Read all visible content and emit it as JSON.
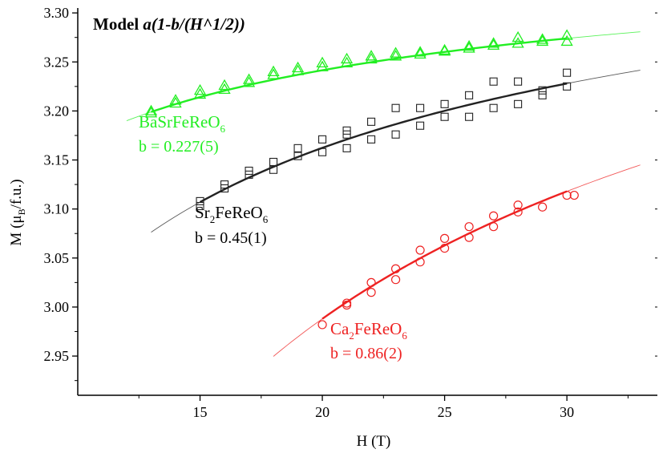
{
  "chart_data": {
    "type": "scatter",
    "title": "Model a(1-b/(H^1/2))",
    "title_prefix": "Model ",
    "title_formula": "a(1-b/(H^1/2))",
    "xlabel": "H (T)",
    "ylabel_main": "M (μ",
    "ylabel_sub": "B",
    "ylabel_tail": "/f.u.)",
    "xlim": [
      10,
      33.7
    ],
    "ylim": [
      2.91,
      3.305
    ],
    "xticks": [
      15,
      20,
      25,
      30
    ],
    "yticks": [
      2.95,
      3.0,
      3.05,
      3.1,
      3.15,
      3.2,
      3.25,
      3.3
    ],
    "grid": false,
    "series": [
      {
        "name": "BaSrFeReO6",
        "label_main": "BaSrFeReO",
        "label_sub": "6",
        "b_label": "b = 0.227(5)",
        "color": "#22ee22",
        "marker": "triangle",
        "points": [
          [
            13,
            3.198
          ],
          [
            13,
            3.2
          ],
          [
            14,
            3.208
          ],
          [
            14,
            3.211
          ],
          [
            15,
            3.217
          ],
          [
            15,
            3.221
          ],
          [
            16,
            3.222
          ],
          [
            16,
            3.226
          ],
          [
            17,
            3.229
          ],
          [
            17,
            3.232
          ],
          [
            18,
            3.237
          ],
          [
            18,
            3.24
          ],
          [
            19,
            3.241
          ],
          [
            19,
            3.244
          ],
          [
            20,
            3.245
          ],
          [
            20,
            3.249
          ],
          [
            21,
            3.249
          ],
          [
            21,
            3.253
          ],
          [
            22,
            3.253
          ],
          [
            22,
            3.256
          ],
          [
            23,
            3.256
          ],
          [
            23,
            3.259
          ],
          [
            24,
            3.258
          ],
          [
            24,
            3.26
          ],
          [
            25,
            3.261
          ],
          [
            25,
            3.262
          ],
          [
            26,
            3.264
          ],
          [
            26,
            3.266
          ],
          [
            27,
            3.267
          ],
          [
            27,
            3.269
          ],
          [
            28,
            3.269
          ],
          [
            28,
            3.275
          ],
          [
            29,
            3.271
          ],
          [
            29,
            3.273
          ],
          [
            30,
            3.271
          ],
          [
            30,
            3.277
          ]
        ],
        "fit_thin": [
          12,
          33
        ],
        "fit_thick": [
          13,
          30
        ],
        "fit_anchor": [
          [
            13,
            3.199
          ],
          [
            30,
            3.274
          ]
        ]
      },
      {
        "name": "Sr2FeReO6",
        "label_main": "Sr",
        "label_sub": "2",
        "label_tail": "FeReO",
        "label_sub2": "6",
        "b_label": "b = 0.45(1)",
        "color": "#222222",
        "marker": "square",
        "points": [
          [
            15,
            3.103
          ],
          [
            15,
            3.108
          ],
          [
            16,
            3.121
          ],
          [
            16,
            3.125
          ],
          [
            17,
            3.135
          ],
          [
            17,
            3.139
          ],
          [
            18,
            3.14
          ],
          [
            18,
            3.148
          ],
          [
            19,
            3.154
          ],
          [
            19,
            3.162
          ],
          [
            20,
            3.158
          ],
          [
            20,
            3.171
          ],
          [
            21,
            3.162
          ],
          [
            21,
            3.176
          ],
          [
            21,
            3.18
          ],
          [
            22,
            3.171
          ],
          [
            22,
            3.189
          ],
          [
            23,
            3.176
          ],
          [
            23,
            3.203
          ],
          [
            24,
            3.185
          ],
          [
            24,
            3.203
          ],
          [
            25,
            3.194
          ],
          [
            25,
            3.207
          ],
          [
            26,
            3.194
          ],
          [
            26,
            3.216
          ],
          [
            27,
            3.203
          ],
          [
            27,
            3.23
          ],
          [
            28,
            3.207
          ],
          [
            28,
            3.23
          ],
          [
            29,
            3.216
          ],
          [
            29,
            3.221
          ],
          [
            30,
            3.225
          ],
          [
            30,
            3.239
          ]
        ],
        "fit_thin": [
          13,
          33
        ],
        "fit_thick": [
          15,
          30
        ],
        "fit_anchor": [
          [
            15,
            3.107
          ],
          [
            30,
            3.228
          ]
        ]
      },
      {
        "name": "Ca2FeReO6",
        "label_main": "Ca",
        "label_sub": "2",
        "label_tail": "FeReO",
        "label_sub2": "6",
        "b_label": "b = 0.86(2)",
        "color": "#ee2222",
        "marker": "circle",
        "points": [
          [
            20,
            2.982
          ],
          [
            21,
            3.002
          ],
          [
            21,
            3.004
          ],
          [
            22,
            3.015
          ],
          [
            22,
            3.025
          ],
          [
            23,
            3.028
          ],
          [
            23,
            3.039
          ],
          [
            24,
            3.046
          ],
          [
            24,
            3.058
          ],
          [
            25,
            3.06
          ],
          [
            25,
            3.07
          ],
          [
            26,
            3.071
          ],
          [
            26,
            3.082
          ],
          [
            27,
            3.082
          ],
          [
            27,
            3.093
          ],
          [
            28,
            3.097
          ],
          [
            28,
            3.104
          ],
          [
            29,
            3.102
          ],
          [
            30,
            3.114
          ],
          [
            30.3,
            3.114
          ]
        ],
        "fit_thin": [
          18,
          33
        ],
        "fit_thick": [
          20,
          30
        ],
        "fit_anchor": [
          [
            20,
            2.988
          ],
          [
            30,
            3.118
          ]
        ]
      }
    ]
  }
}
